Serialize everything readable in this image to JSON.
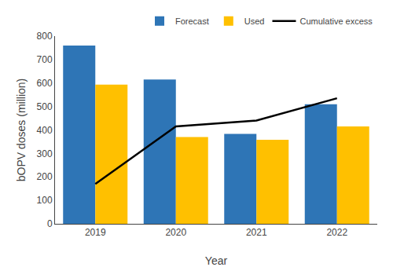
{
  "chart_data": {
    "type": "bar",
    "categories": [
      "2019",
      "2020",
      "2021",
      "2022"
    ],
    "series": [
      {
        "name": "Forecast",
        "color": "#2E75B6",
        "values": [
          760,
          615,
          383,
          510
        ]
      },
      {
        "name": "Used",
        "color": "#FFC000",
        "values": [
          593,
          370,
          358,
          415
        ]
      },
      {
        "name": "Cumulative excess",
        "type": "line",
        "color": "#000000",
        "values": [
          170,
          415,
          440,
          535
        ]
      }
    ],
    "xlabel": "Year",
    "ylabel": "bOPV doses (million)",
    "ylim": [
      0,
      800
    ],
    "yticks": [
      0,
      100,
      200,
      300,
      400,
      500,
      600,
      700,
      800
    ],
    "legend": "upper right",
    "grid": false
  }
}
